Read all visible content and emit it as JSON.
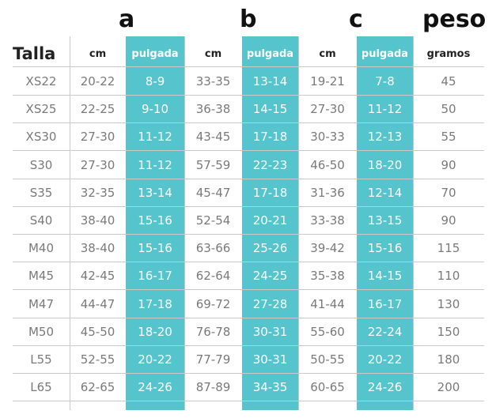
{
  "groups": {
    "a": "a",
    "b": "b",
    "c": "c",
    "peso": "peso"
  },
  "headers": {
    "talla": "Talla",
    "a_cm": "cm",
    "a_in": "pulgada",
    "b_cm": "cm",
    "b_in": "pulgada",
    "c_cm": "cm",
    "c_in": "pulgada",
    "peso_unit": "gramos"
  },
  "colors": {
    "teal": "#55c4cd",
    "text_gray": "#7a7a7a"
  },
  "rows": [
    [
      "XS22",
      "20-22",
      "8-9",
      "33-35",
      "13-14",
      "19-21",
      "7-8",
      "45"
    ],
    [
      "XS25",
      "22-25",
      "9-10",
      "36-38",
      "14-15",
      "27-30",
      "11-12",
      "50"
    ],
    [
      "XS30",
      "27-30",
      "11-12",
      "43-45",
      "17-18",
      "30-33",
      "12-13",
      "55"
    ],
    [
      "S30",
      "27-30",
      "11-12",
      "57-59",
      "22-23",
      "46-50",
      "18-20",
      "90"
    ],
    [
      "S35",
      "32-35",
      "13-14",
      "45-47",
      "17-18",
      "31-36",
      "12-14",
      "70"
    ],
    [
      "S40",
      "38-40",
      "15-16",
      "52-54",
      "20-21",
      "33-38",
      "13-15",
      "90"
    ],
    [
      "M40",
      "38-40",
      "15-16",
      "63-66",
      "25-26",
      "39-42",
      "15-16",
      "115"
    ],
    [
      "M45",
      "42-45",
      "16-17",
      "62-64",
      "24-25",
      "35-38",
      "14-15",
      "110"
    ],
    [
      "M47",
      "44-47",
      "17-18",
      "69-72",
      "27-28",
      "41-44",
      "16-17",
      "130"
    ],
    [
      "M50",
      "45-50",
      "18-20",
      "76-78",
      "30-31",
      "55-60",
      "22-24",
      "150"
    ],
    [
      "L55",
      "52-55",
      "20-22",
      "77-79",
      "30-31",
      "50-55",
      "20-22",
      "180"
    ],
    [
      "L65",
      "62-65",
      "24-26",
      "87-89",
      "34-35",
      "60-65",
      "24-26",
      "200"
    ]
  ]
}
